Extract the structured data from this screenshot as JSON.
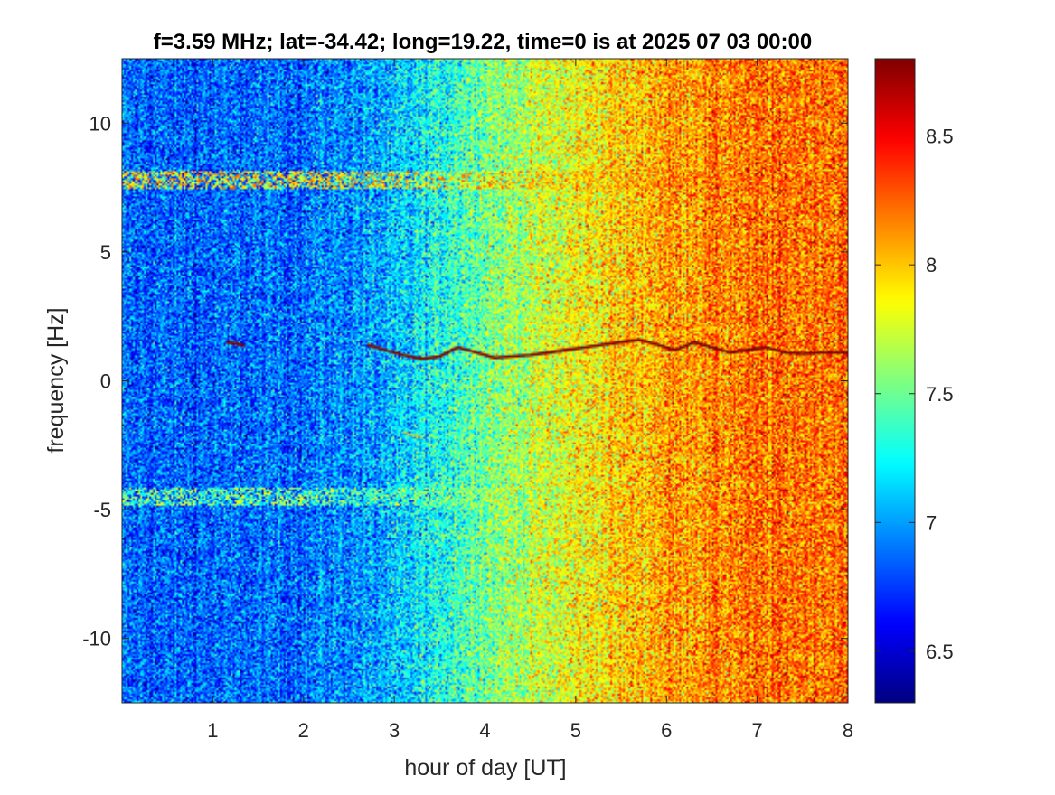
{
  "chart_data": {
    "type": "heatmap",
    "title": "f=3.59 MHz;  lat=-34.42; long=19.22, time=0 is at 2025 07 03 00:00",
    "xlabel": "hour of day [UT]",
    "ylabel": "frequency [Hz]",
    "xlim": [
      0,
      8
    ],
    "ylim": [
      -12.5,
      12.5
    ],
    "x_ticks": [
      1,
      2,
      3,
      4,
      5,
      6,
      7,
      8
    ],
    "x_tick_labels": [
      "1",
      "2",
      "3",
      "4",
      "5",
      "6",
      "7",
      "8"
    ],
    "y_ticks": [
      10,
      5,
      0,
      -5,
      -10
    ],
    "y_tick_labels": [
      "10",
      "5",
      "0",
      "-5",
      "-10"
    ],
    "colorbar": {
      "colormap": "jet",
      "clim": [
        6.3,
        8.8
      ],
      "ticks": [
        6.5,
        7,
        7.5,
        8,
        8.5
      ],
      "tick_labels": [
        "6.5",
        "7",
        "7.5",
        "8",
        "8.5"
      ]
    },
    "background_level": {
      "hours": [
        0,
        1,
        2,
        3,
        3.5,
        4,
        5,
        6,
        7,
        8
      ],
      "values": [
        6.85,
        6.85,
        6.9,
        7.05,
        7.3,
        7.55,
        7.85,
        8.1,
        8.2,
        8.25
      ]
    },
    "horizontal_bands": [
      {
        "frequency_hz": 7.8,
        "hours": [
          0,
          8
        ],
        "level": 8.3
      },
      {
        "frequency_hz": -4.5,
        "hours": [
          0,
          4.2
        ],
        "level": 7.9
      }
    ],
    "doppler_trace": {
      "level": 8.8,
      "segments": [
        {
          "hours": [
            1.15,
            1.25,
            1.35
          ],
          "frequency_hz": [
            1.5,
            1.45,
            1.35
          ]
        },
        {
          "hours": [
            2.7,
            2.9,
            3.1,
            3.3,
            3.5,
            3.7,
            3.9,
            4.1,
            4.3,
            4.5,
            4.7,
            4.9,
            5.1,
            5.3,
            5.5,
            5.7,
            5.9,
            6.1,
            6.3,
            6.5,
            6.7,
            6.9,
            7.1,
            7.3,
            7.5,
            7.7,
            7.9,
            8.0
          ],
          "frequency_hz": [
            1.4,
            1.2,
            1.0,
            0.85,
            0.95,
            1.3,
            1.1,
            0.9,
            0.95,
            1.0,
            1.1,
            1.2,
            1.3,
            1.4,
            1.5,
            1.6,
            1.4,
            1.2,
            1.5,
            1.3,
            1.1,
            1.2,
            1.3,
            1.1,
            1.05,
            1.1,
            1.1,
            1.1
          ]
        }
      ]
    },
    "faint_mark": {
      "hours": [
        3.1,
        3.3
      ],
      "frequency_hz": [
        -2.0,
        -2.2
      ],
      "level": 8.0
    }
  }
}
